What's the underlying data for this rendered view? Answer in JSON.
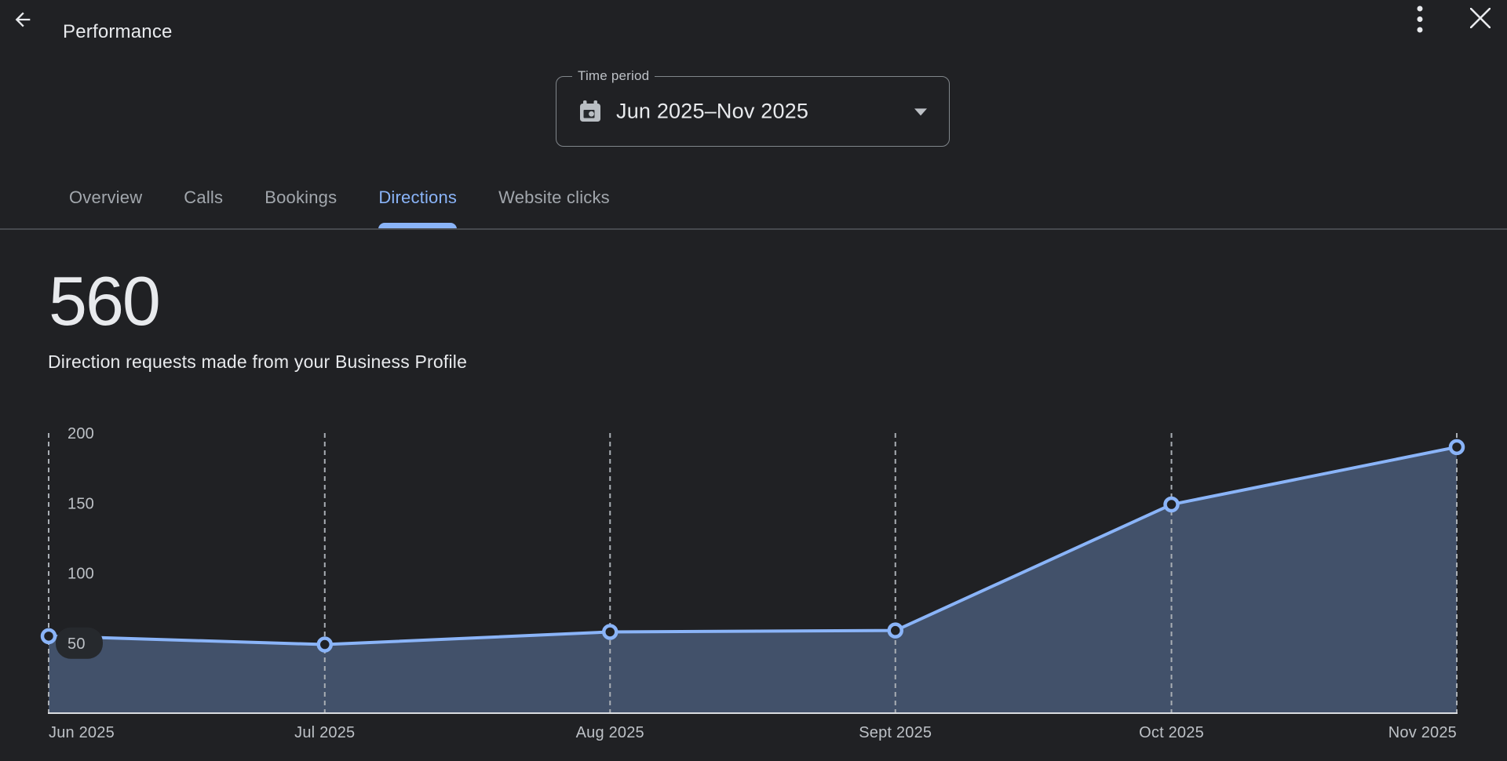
{
  "header": {
    "title": "Performance"
  },
  "icons": {
    "back": "arrow-back-icon",
    "more": "kebab-menu-icon",
    "close": "close-icon",
    "calendar": "calendar-icon",
    "dropdown": "arrow-drop-down-icon"
  },
  "time_period": {
    "label": "Time period",
    "value": "Jun 2025–Nov 2025"
  },
  "tabs": {
    "items": [
      {
        "label": "Overview",
        "active": false
      },
      {
        "label": "Calls",
        "active": false
      },
      {
        "label": "Bookings",
        "active": false
      },
      {
        "label": "Directions",
        "active": true
      },
      {
        "label": "Website clicks",
        "active": false
      }
    ]
  },
  "stat": {
    "value": "560",
    "description": "Direction requests made from your Business Profile"
  },
  "chart_data": {
    "type": "area",
    "series_name": "Direction requests",
    "x": [
      "Jun 2025",
      "Jul 2025",
      "Aug 2025",
      "Sept 2025",
      "Oct 2025",
      "Nov 2025"
    ],
    "x_day_offsets": [
      0,
      30,
      61,
      92,
      122,
      153
    ],
    "values": [
      55,
      49,
      58,
      59,
      149,
      190
    ],
    "total": 560,
    "ylim": [
      0,
      200
    ],
    "yticks": [
      50,
      100,
      150,
      200
    ],
    "grid": "vertical-dashed",
    "legend": "none",
    "colors": {
      "line": "#8ab4f8",
      "point_fill": "#202124",
      "area_fill": "rgba(138,180,248,0.33)",
      "gridline": "#a9aeb4",
      "axis_line": "#dadce0",
      "tick_text": "#bdc1c6",
      "tick_pill": "#26292d"
    }
  },
  "theme": {
    "background": "#202124",
    "text_primary": "#e8eaed",
    "text_secondary": "#bdc1c6",
    "tab_inactive": "#a2a7ad",
    "accent": "#8ab4f8",
    "divider": "#46494e",
    "field_border": "#80868b"
  }
}
